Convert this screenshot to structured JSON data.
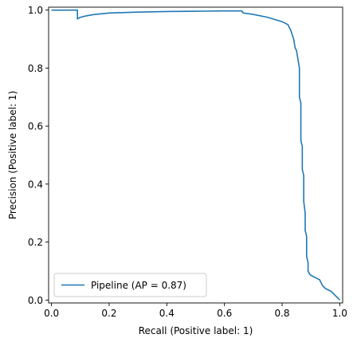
{
  "chart_data": {
    "type": "line",
    "title": "",
    "xlabel": "Recall (Positive label: 1)",
    "ylabel": "Precision (Positive label: 1)",
    "xlim": [
      -0.01,
      1.01
    ],
    "ylim": [
      -0.01,
      1.01
    ],
    "xticks": [
      0.0,
      0.2,
      0.4,
      0.6,
      0.8,
      1.0
    ],
    "xtick_labels": [
      "0.0",
      "0.2",
      "0.4",
      "0.6",
      "0.8",
      "1.0"
    ],
    "yticks": [
      0.0,
      0.2,
      0.4,
      0.6,
      0.8,
      1.0
    ],
    "ytick_labels": [
      "0.0",
      "0.2",
      "0.4",
      "0.6",
      "0.8",
      "1.0"
    ],
    "grid": false,
    "legend": {
      "placement": "lower-left",
      "entries": [
        "Pipeline (AP = 0.87)"
      ]
    },
    "series": [
      {
        "name": "Pipeline (AP = 0.87)",
        "color": "#1f77b4",
        "x": [
          0.0,
          0.09,
          0.09,
          0.1,
          0.12,
          0.15,
          0.2,
          0.3,
          0.4,
          0.5,
          0.6,
          0.66,
          0.665,
          0.7,
          0.75,
          0.8,
          0.82,
          0.83,
          0.84,
          0.845,
          0.85,
          0.855,
          0.86,
          0.86,
          0.865,
          0.865,
          0.87,
          0.87,
          0.875,
          0.875,
          0.88,
          0.88,
          0.885,
          0.885,
          0.89,
          0.89,
          0.895,
          0.9,
          0.91,
          0.92,
          0.93,
          0.94,
          0.95,
          0.96,
          0.97,
          0.98,
          0.99,
          1.0
        ],
        "y": [
          1.0,
          1.0,
          0.97,
          0.975,
          0.98,
          0.985,
          0.99,
          0.993,
          0.995,
          0.996,
          0.997,
          0.997,
          0.99,
          0.985,
          0.975,
          0.96,
          0.95,
          0.93,
          0.9,
          0.87,
          0.86,
          0.83,
          0.8,
          0.7,
          0.68,
          0.55,
          0.53,
          0.45,
          0.43,
          0.34,
          0.3,
          0.24,
          0.22,
          0.15,
          0.13,
          0.1,
          0.09,
          0.085,
          0.08,
          0.075,
          0.07,
          0.05,
          0.04,
          0.035,
          0.03,
          0.02,
          0.01,
          0.0
        ]
      }
    ]
  }
}
